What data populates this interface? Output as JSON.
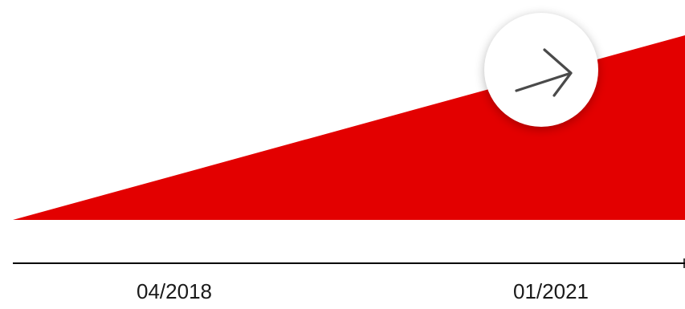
{
  "graphic": {
    "fill_color": "#e30000",
    "axis_color": "#000000"
  },
  "arrow_button": {
    "icon": "arrow-right-icon",
    "icon_color": "#4a4a4a"
  },
  "timeline": {
    "start_label": "04/2018",
    "end_label": "01/2021"
  }
}
